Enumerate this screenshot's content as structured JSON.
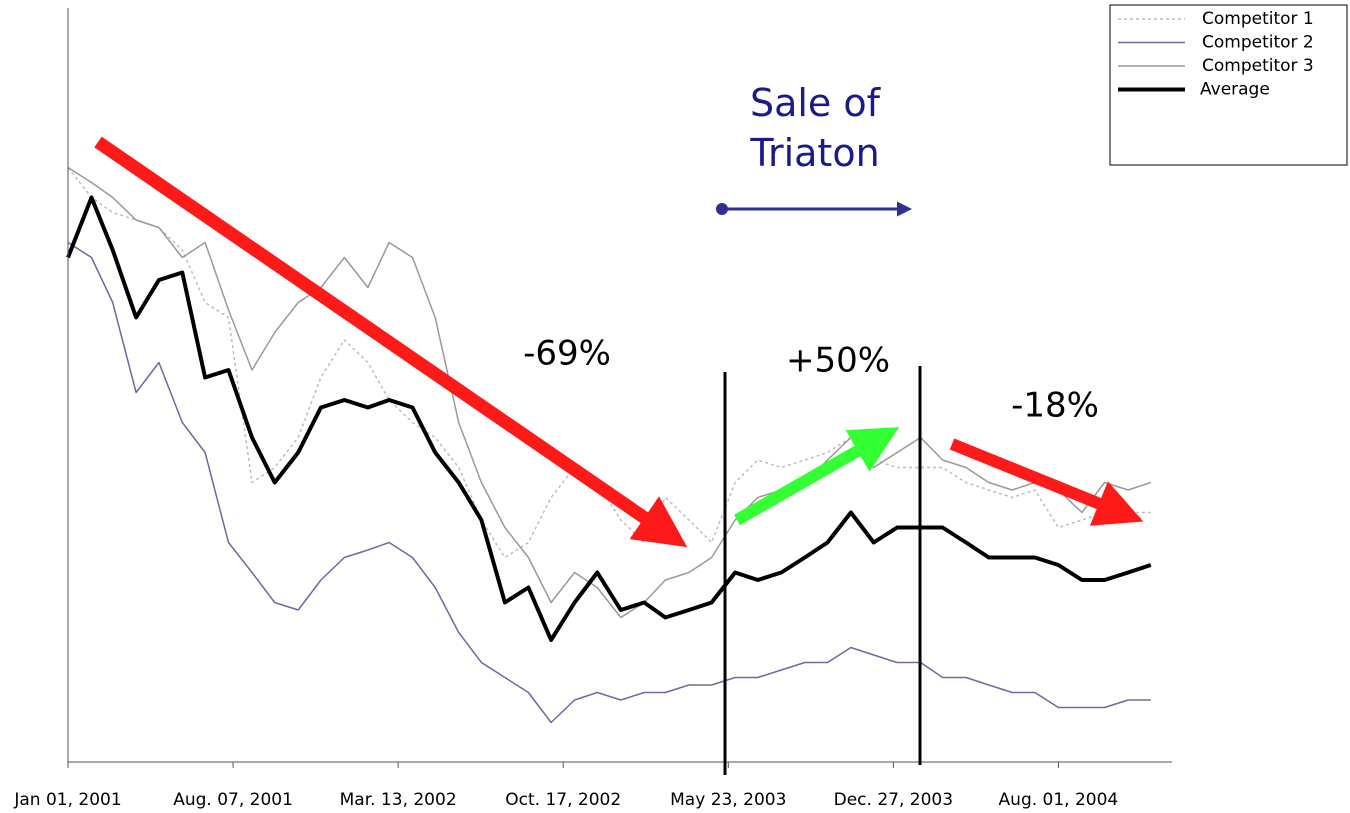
{
  "chart_data": {
    "type": "line",
    "x": [
      "2001-01-01",
      "2001-02-01",
      "2001-03-01",
      "2001-04-01",
      "2001-05-01",
      "2001-06-01",
      "2001-07-01",
      "2001-08-01",
      "2001-09-01",
      "2001-10-01",
      "2001-11-01",
      "2001-12-01",
      "2002-01-01",
      "2002-02-01",
      "2002-03-01",
      "2002-04-01",
      "2002-05-01",
      "2002-06-01",
      "2002-07-01",
      "2002-08-01",
      "2002-09-01",
      "2002-10-01",
      "2002-11-01",
      "2002-12-01",
      "2003-01-01",
      "2003-02-01",
      "2003-03-01",
      "2003-04-01",
      "2003-05-01",
      "2003-06-01",
      "2003-07-01",
      "2003-08-01",
      "2003-09-01",
      "2003-10-01",
      "2003-11-01",
      "2003-12-01",
      "2004-01-01",
      "2004-02-01",
      "2004-03-01",
      "2004-04-01",
      "2004-05-01",
      "2004-06-01",
      "2004-07-01",
      "2004-08-01",
      "2004-09-01",
      "2004-10-01",
      "2004-11-01",
      "2004-12-01"
    ],
    "series": [
      {
        "name": "Competitor 1",
        "color": "#bdbdbd",
        "dash": true,
        "width": 1.5,
        "values": [
          79,
          75,
          73,
          72,
          71,
          68,
          61,
          59,
          37,
          39,
          43,
          51,
          56,
          53,
          48,
          45,
          43,
          39,
          32,
          27,
          29,
          35,
          39,
          37,
          32,
          29,
          35,
          32,
          29,
          37,
          40,
          39,
          40,
          41,
          43,
          40,
          39,
          39,
          39,
          37,
          36,
          35,
          36,
          31,
          32,
          33,
          33,
          33
        ]
      },
      {
        "name": "Competitor 2",
        "color": "#6b6ba3",
        "dash": false,
        "width": 1.5,
        "values": [
          69,
          67,
          61,
          49,
          53,
          45,
          41,
          29,
          25,
          21,
          20,
          24,
          27,
          28,
          29,
          27,
          23,
          17,
          13,
          11,
          9,
          5,
          8,
          9,
          8,
          9,
          9,
          10,
          10,
          11,
          11,
          12,
          13,
          13,
          15,
          14,
          13,
          13,
          11,
          11,
          10,
          9,
          9,
          7,
          7,
          7,
          8,
          8
        ]
      },
      {
        "name": "Competitor 3",
        "color": "#9a9a9a",
        "dash": false,
        "width": 1.5,
        "values": [
          79,
          77,
          75,
          72,
          71,
          67,
          69,
          60,
          52,
          57,
          61,
          63,
          67,
          63,
          69,
          67,
          59,
          45,
          37,
          31,
          27,
          21,
          25,
          23,
          19,
          21,
          24,
          25,
          27,
          32,
          35,
          36,
          37,
          40,
          43,
          39,
          41,
          43,
          40,
          39,
          37,
          36,
          37,
          36,
          33,
          37,
          36,
          37
        ]
      },
      {
        "name": "Average",
        "color": "#000000",
        "dash": false,
        "width": 4,
        "values": [
          67,
          75,
          68,
          59,
          64,
          65,
          51,
          52,
          43,
          37,
          41,
          47,
          48,
          47,
          48,
          47,
          41,
          37,
          32,
          21,
          23,
          16,
          21,
          25,
          20,
          21,
          19,
          20,
          21,
          25,
          24,
          25,
          27,
          29,
          33,
          29,
          31,
          31,
          31,
          29,
          27,
          27,
          27,
          26,
          24,
          24,
          25,
          26
        ]
      }
    ],
    "xlim": [
      "2001-01-01",
      "2004-12-29"
    ],
    "xticks": [
      {
        "value": "2001-01-01",
        "label": "Jan 01, 2001"
      },
      {
        "value": "2001-08-07",
        "label": "Aug. 07, 2001"
      },
      {
        "value": "2002-03-13",
        "label": "Mar. 13, 2002"
      },
      {
        "value": "2002-10-17",
        "label": "Oct. 17, 2002"
      },
      {
        "value": "2003-05-23",
        "label": "May 23, 2003"
      },
      {
        "value": "2003-12-27",
        "label": "Dec. 27, 2003"
      },
      {
        "value": "2004-08-01",
        "label": "Aug. 01, 2004"
      }
    ],
    "ylim": [
      0,
      100
    ],
    "annotations": [
      "Sale of Triaton",
      "-69%",
      "+50%",
      "-18%"
    ],
    "legend": "top-right"
  }
}
